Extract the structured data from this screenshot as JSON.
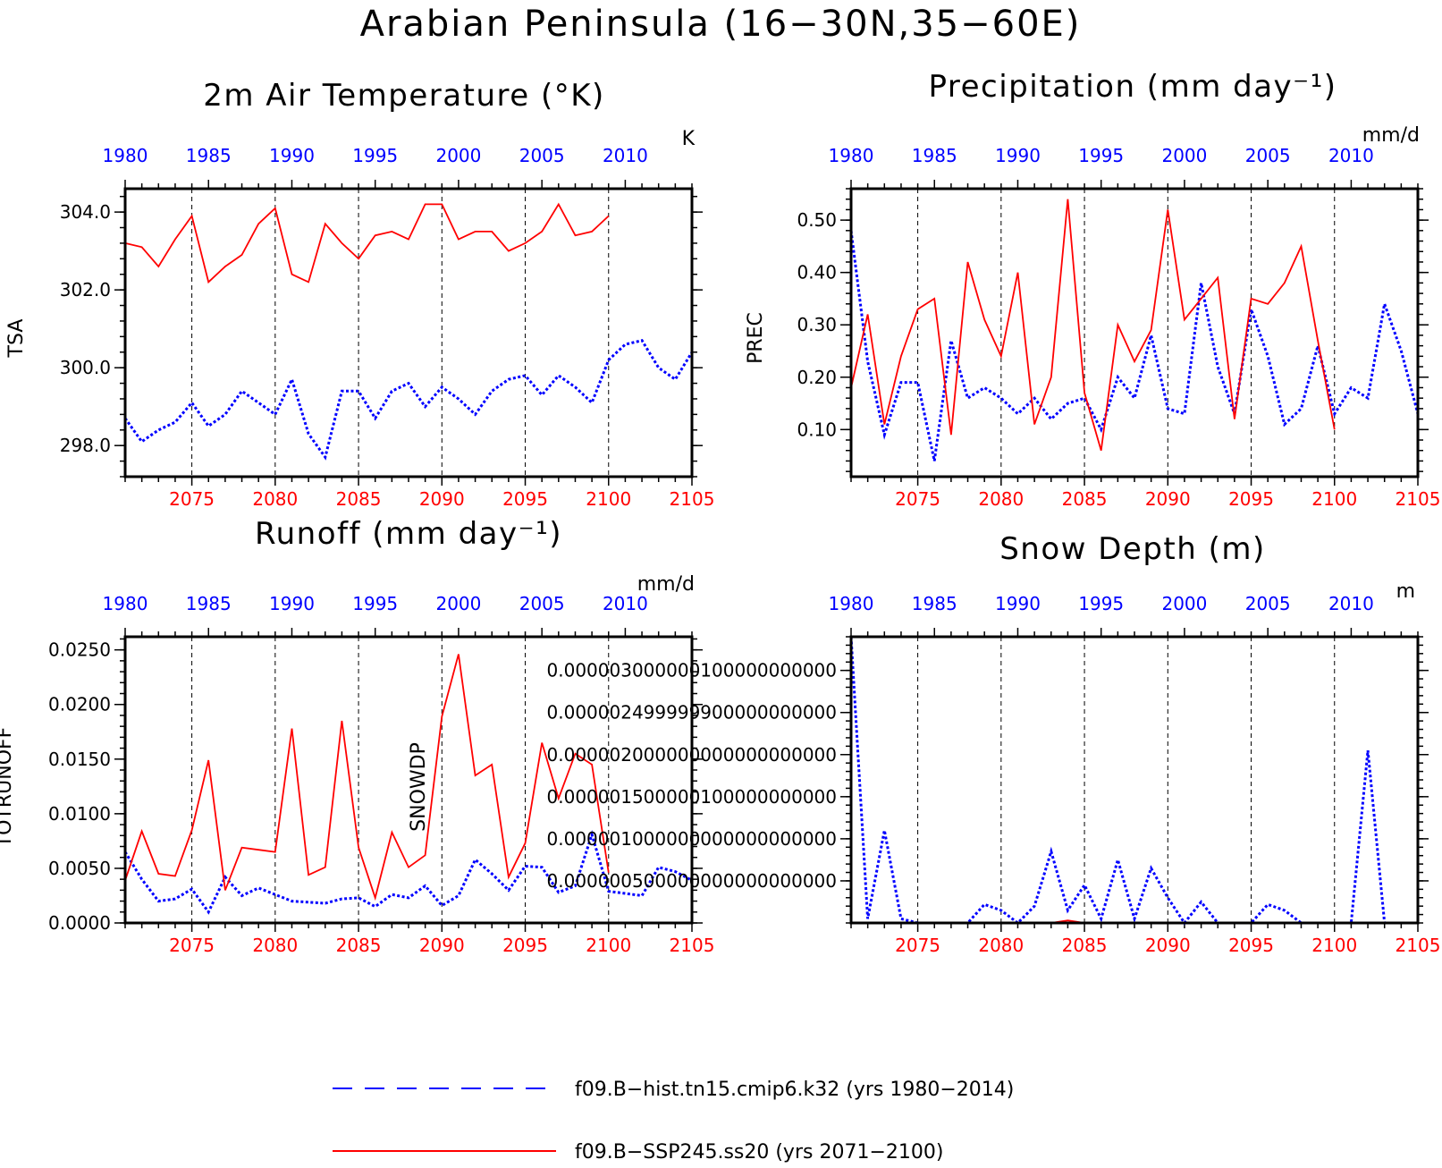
{
  "figure_title": "Arabian Peninsula (16−30N,35−60E)",
  "colors": {
    "hist": "#0000ff",
    "future": "#ff0000",
    "frame": "#000000"
  },
  "legend": {
    "entries": [
      {
        "label": "f09.B−hist.tn15.cmip6.k32 (yrs 1980−2014)",
        "color": "#0000ff",
        "style": "dashed"
      },
      {
        "label": "f09.B−SSP245.ss20 (yrs 2071−2100)",
        "color": "#ff0000",
        "style": "solid"
      }
    ]
  },
  "chart_data": [
    {
      "type": "line",
      "title": "2m Air Temperature (°K)",
      "ylabel": "TSA",
      "units_label": "K",
      "ylim": [
        297.2,
        304.6
      ],
      "yticks": [
        298.0,
        300.0,
        302.0,
        304.0
      ],
      "ytick_labels": [
        "298.0",
        "300.0",
        "302.0",
        "304.0"
      ],
      "top_xticks": [
        "1980",
        "1985",
        "1990",
        "1995",
        "2000",
        "2005",
        "2010"
      ],
      "bottom_xticks": [
        "2075",
        "2080",
        "2085",
        "2090",
        "2095",
        "2100",
        "2105"
      ],
      "grid": "dashed vertical at bottom-axis ticks",
      "series": [
        {
          "name": "f09.B−hist.tn15.cmip6.k32 (yrs 1980−2014)",
          "x_start": 2071,
          "values": [
            298.7,
            298.1,
            298.4,
            298.6,
            299.1,
            298.5,
            298.8,
            299.4,
            299.1,
            298.8,
            299.7,
            298.3,
            297.7,
            299.4,
            299.4,
            298.7,
            299.4,
            299.6,
            299.0,
            299.5,
            299.2,
            298.8,
            299.4,
            299.7,
            299.8,
            299.3,
            299.8,
            299.5,
            299.1,
            300.2,
            300.6,
            300.7,
            300.0,
            299.7,
            300.4
          ]
        },
        {
          "name": "f09.B−SSP245.ss20 (yrs 2071−2100)",
          "x_start": 2071,
          "values": [
            303.2,
            303.1,
            302.6,
            303.3,
            303.9,
            302.2,
            302.6,
            302.9,
            303.7,
            304.1,
            302.4,
            302.2,
            303.7,
            303.2,
            302.8,
            303.4,
            303.5,
            303.3,
            304.2,
            304.2,
            303.3,
            303.5,
            303.5,
            303.0,
            303.2,
            303.5,
            304.2,
            303.4,
            303.5,
            303.9
          ]
        }
      ]
    },
    {
      "type": "line",
      "title": "Precipitation (mm day⁻¹)",
      "ylabel": "PREC",
      "units_label": "mm/d",
      "ylim": [
        0.01,
        0.56
      ],
      "yticks": [
        0.1,
        0.2,
        0.3,
        0.4,
        0.5
      ],
      "ytick_labels": [
        "0.10",
        "0.20",
        "0.30",
        "0.40",
        "0.50"
      ],
      "top_xticks": [
        "1980",
        "1985",
        "1990",
        "1995",
        "2000",
        "2005",
        "2010"
      ],
      "bottom_xticks": [
        "2075",
        "2080",
        "2085",
        "2090",
        "2095",
        "2100",
        "2105"
      ],
      "grid": "dashed vertical at bottom-axis ticks",
      "series": [
        {
          "name": "f09.B−hist.tn15.cmip6.k32 (yrs 1980−2014)",
          "x_start": 2071,
          "values": [
            0.48,
            0.23,
            0.09,
            0.19,
            0.19,
            0.04,
            0.27,
            0.16,
            0.18,
            0.16,
            0.13,
            0.16,
            0.12,
            0.15,
            0.16,
            0.1,
            0.2,
            0.16,
            0.28,
            0.14,
            0.13,
            0.38,
            0.22,
            0.13,
            0.33,
            0.24,
            0.11,
            0.14,
            0.26,
            0.13,
            0.18,
            0.16,
            0.34,
            0.25,
            0.13
          ]
        },
        {
          "name": "f09.B−SSP245.ss20 (yrs 2071−2100)",
          "x_start": 2071,
          "values": [
            0.18,
            0.32,
            0.11,
            0.24,
            0.33,
            0.35,
            0.09,
            0.42,
            0.31,
            0.24,
            0.4,
            0.11,
            0.2,
            0.54,
            0.17,
            0.06,
            0.3,
            0.23,
            0.29,
            0.52,
            0.31,
            0.35,
            0.39,
            0.12,
            0.35,
            0.34,
            0.38,
            0.45,
            0.27,
            0.1
          ]
        }
      ]
    },
    {
      "type": "line",
      "title": "Runoff (mm day⁻¹)",
      "ylabel": "TOTRUNOFF",
      "units_label": "mm/d",
      "ylim": [
        0.0,
        0.0262
      ],
      "yticks": [
        0.0,
        0.005,
        0.01,
        0.015,
        0.02,
        0.025
      ],
      "ytick_labels": [
        "0.0000",
        "0.0050",
        "0.0100",
        "0.0150",
        "0.0200",
        "0.0250"
      ],
      "top_xticks": [
        "1980",
        "1985",
        "1990",
        "1995",
        "2000",
        "2005",
        "2010"
      ],
      "bottom_xticks": [
        "2075",
        "2080",
        "2085",
        "2090",
        "2095",
        "2100",
        "2105"
      ],
      "grid": "dashed vertical at bottom-axis ticks",
      "series": [
        {
          "name": "f09.B−hist.tn15.cmip6.k32 (yrs 1980−2014)",
          "x_start": 2071,
          "values": [
            0.0065,
            0.004,
            0.002,
            0.0022,
            0.0031,
            0.001,
            0.0042,
            0.0025,
            0.0032,
            0.0026,
            0.002,
            0.0019,
            0.0018,
            0.0022,
            0.0023,
            0.0015,
            0.0026,
            0.0023,
            0.0034,
            0.0016,
            0.0025,
            0.0058,
            0.0045,
            0.003,
            0.0052,
            0.0051,
            0.0028,
            0.0034,
            0.0081,
            0.0029,
            0.0027,
            0.0025,
            0.0051,
            0.0047,
            0.0039
          ]
        },
        {
          "name": "f09.B−SSP245.ss20 (yrs 2071−2100)",
          "x_start": 2071,
          "values": [
            0.0039,
            0.0084,
            0.0045,
            0.0043,
            0.0085,
            0.0149,
            0.003,
            0.0069,
            0.0067,
            0.0065,
            0.0178,
            0.0044,
            0.0051,
            0.0185,
            0.0069,
            0.0023,
            0.0083,
            0.0051,
            0.0062,
            0.0189,
            0.0246,
            0.0135,
            0.0145,
            0.0042,
            0.0073,
            0.0165,
            0.0114,
            0.0155,
            0.0145,
            0.0046
          ]
        }
      ]
    },
    {
      "type": "line",
      "title": "Snow Depth (m)",
      "ylabel": "SNOWDP",
      "units_label": "m",
      "ylim": [
        0.0,
        3.4e-06
      ],
      "yticks": [
        5e-07,
        1e-06,
        1.5e-06,
        2e-06,
        2.5e-06,
        3e-06
      ],
      "ytick_labels": [
        "0.000000500000000000000000",
        "0.000001000000000000000000",
        "0.000001500000100000000000",
        "0.000002000000000000000000",
        "0.000002499999900000000000",
        "0.000003000000100000000000"
      ],
      "top_xticks": [
        "1980",
        "1985",
        "1990",
        "1995",
        "2000",
        "2005",
        "2010"
      ],
      "bottom_xticks": [
        "2075",
        "2080",
        "2085",
        "2090",
        "2095",
        "2100",
        "2105"
      ],
      "grid": "dashed vertical at bottom-axis ticks",
      "series": [
        {
          "name": "f09.B−hist.tn15.cmip6.k32 (yrs 1980−2014)",
          "x_start": 2071,
          "values": [
            3.4e-06,
            5e-08,
            1.1e-06,
            5e-08,
            0.0,
            0.0,
            0.0,
            0.0,
            2.2e-07,
            1.5e-07,
            0.0,
            2e-07,
            8.5e-07,
            1.5e-07,
            4.5e-07,
            5e-08,
            7.5e-07,
            5e-08,
            6.5e-07,
            3e-07,
            0.0,
            2.5e-07,
            0.0,
            0.0,
            0.0,
            2.2e-07,
            1.5e-07,
            0.0,
            0.0,
            0.0,
            0.0,
            2.05e-06,
            0.0,
            0.0,
            0.0
          ]
        },
        {
          "name": "f09.B−SSP245.ss20 (yrs 2071−2100)",
          "x_start": 2071,
          "values": [
            0.0,
            0.0,
            0.0,
            0.0,
            0.0,
            0.0,
            0.0,
            0.0,
            0.0,
            0.0,
            0.0,
            0.0,
            0.0,
            3e-08,
            0.0,
            0.0,
            0.0,
            0.0,
            0.0,
            0.0,
            0.0,
            0.0,
            0.0,
            0.0,
            0.0,
            0.0,
            0.0,
            0.0,
            0.0,
            0.0
          ]
        }
      ]
    }
  ]
}
